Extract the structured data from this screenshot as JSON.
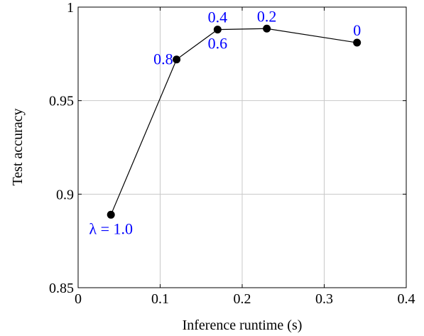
{
  "chart_data": {
    "type": "line",
    "xlabel": "Inference runtime (s)",
    "ylabel": "Test accuracy",
    "xlim": [
      0,
      0.4
    ],
    "ylim": [
      0.85,
      1
    ],
    "x_ticks": [
      0,
      0.1,
      0.2,
      0.3,
      0.4
    ],
    "x_tick_labels": [
      "0",
      "0.1",
      "0.2",
      "0.3",
      "0.4"
    ],
    "y_ticks": [
      0.85,
      0.9,
      0.95,
      1
    ],
    "y_tick_labels": [
      "0.85",
      "0.9",
      "0.95",
      "1"
    ],
    "grid": true,
    "series": [
      {
        "x": [
          0.04,
          0.12,
          0.17,
          0.23,
          0.34
        ],
        "y": [
          0.889,
          0.972,
          0.988,
          0.9885,
          0.981
        ],
        "color": "#000000",
        "marker": "circle"
      }
    ],
    "annotations": [
      {
        "text": "λ = 1.0",
        "x": 0.04,
        "y": 0.889,
        "position": "below",
        "color": "#0000ff"
      },
      {
        "text": "0.8",
        "x": 0.12,
        "y": 0.972,
        "position": "left",
        "color": "#0000ff"
      },
      {
        "text": "0.6",
        "x": 0.17,
        "y": 0.988,
        "position": "below",
        "color": "#0000ff"
      },
      {
        "text": "0.4",
        "x": 0.17,
        "y": 0.988,
        "position": "above",
        "color": "#0000ff"
      },
      {
        "text": "0.2",
        "x": 0.23,
        "y": 0.9885,
        "position": "above",
        "color": "#0000ff"
      },
      {
        "text": "0",
        "x": 0.34,
        "y": 0.981,
        "position": "above",
        "color": "#0000ff"
      }
    ]
  }
}
